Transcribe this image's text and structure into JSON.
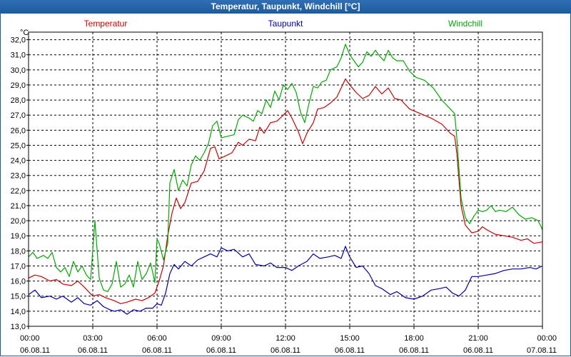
{
  "window": {
    "title": "Temperatur, Taupunkt, Windchill [°C]"
  },
  "colors": {
    "temperatur": "#cc0000",
    "taupunkt": "#0000aa",
    "windchill": "#00aa00",
    "grid": "#000000"
  },
  "chart_data": {
    "type": "line",
    "title": "Temperatur, Taupunkt, Windchill [°C]",
    "yunit": "°C",
    "ylim": [
      13.0,
      32.5
    ],
    "yticks": [
      "13,0",
      "14,0",
      "15,0",
      "16,0",
      "17,0",
      "18,0",
      "19,0",
      "20,0",
      "21,0",
      "22,0",
      "23,0",
      "24,0",
      "25,0",
      "26,0",
      "27,0",
      "28,0",
      "29,0",
      "30,0",
      "31,0",
      "32,0"
    ],
    "xlim": [
      0,
      24
    ],
    "xticks": [
      {
        "time": "00:00",
        "date": "06.08.11"
      },
      {
        "time": "03:00",
        "date": "06.08.11"
      },
      {
        "time": "06:00",
        "date": "06.08.11"
      },
      {
        "time": "09:00",
        "date": "06.08.11"
      },
      {
        "time": "12:00",
        "date": "06.08.11"
      },
      {
        "time": "15:00",
        "date": "06.08.11"
      },
      {
        "time": "18:00",
        "date": "06.08.11"
      },
      {
        "time": "21:00",
        "date": "06.08.11"
      },
      {
        "time": "00:00",
        "date": "07.08.11"
      }
    ],
    "series": [
      {
        "name": "Temperatur",
        "color": "#cc0000",
        "points": [
          [
            0,
            16.2
          ],
          [
            0.3,
            16.4
          ],
          [
            0.6,
            16.3
          ],
          [
            1.0,
            16.0
          ],
          [
            1.3,
            16.1
          ],
          [
            1.6,
            15.8
          ],
          [
            2.0,
            15.7
          ],
          [
            2.3,
            16.0
          ],
          [
            2.6,
            15.6
          ],
          [
            3.0,
            15.0
          ],
          [
            3.3,
            15.1
          ],
          [
            3.6,
            14.9
          ],
          [
            4.0,
            14.7
          ],
          [
            4.3,
            14.5
          ],
          [
            4.6,
            14.6
          ],
          [
            5.0,
            14.8
          ],
          [
            5.3,
            14.7
          ],
          [
            5.6,
            14.9
          ],
          [
            5.9,
            15.2
          ],
          [
            6.1,
            16.0
          ],
          [
            6.3,
            17.0
          ],
          [
            6.5,
            19.0
          ],
          [
            6.7,
            20.5
          ],
          [
            6.9,
            21.5
          ],
          [
            7.1,
            20.8
          ],
          [
            7.3,
            21.2
          ],
          [
            7.6,
            22.5
          ],
          [
            7.9,
            22.6
          ],
          [
            8.2,
            23.3
          ],
          [
            8.5,
            24.8
          ],
          [
            8.7,
            24.9
          ],
          [
            8.9,
            24.1
          ],
          [
            9.2,
            24.3
          ],
          [
            9.5,
            24.5
          ],
          [
            9.8,
            25.2
          ],
          [
            10.0,
            25.0
          ],
          [
            10.3,
            25.4
          ],
          [
            10.6,
            25.3
          ],
          [
            10.8,
            26.2
          ],
          [
            11.0,
            25.8
          ],
          [
            11.3,
            26.5
          ],
          [
            11.6,
            26.6
          ],
          [
            11.9,
            27.0
          ],
          [
            12.1,
            27.3
          ],
          [
            12.3,
            26.8
          ],
          [
            12.6,
            25.9
          ],
          [
            12.8,
            25.1
          ],
          [
            13.0,
            25.8
          ],
          [
            13.3,
            26.5
          ],
          [
            13.5,
            27.4
          ],
          [
            13.8,
            27.5
          ],
          [
            14.1,
            27.8
          ],
          [
            14.4,
            28.2
          ],
          [
            14.8,
            29.4
          ],
          [
            15.0,
            29.0
          ],
          [
            15.3,
            28.5
          ],
          [
            15.6,
            28.1
          ],
          [
            15.9,
            28.3
          ],
          [
            16.2,
            28.9
          ],
          [
            16.5,
            28.4
          ],
          [
            16.8,
            28.8
          ],
          [
            17.1,
            28.1
          ],
          [
            17.4,
            28.0
          ],
          [
            17.8,
            27.4
          ],
          [
            18.3,
            27.1
          ],
          [
            18.8,
            26.8
          ],
          [
            19.3,
            26.4
          ],
          [
            19.7,
            25.8
          ],
          [
            19.9,
            25.6
          ],
          [
            20.0,
            24.5
          ],
          [
            20.2,
            21.0
          ],
          [
            20.4,
            19.7
          ],
          [
            20.7,
            19.2
          ],
          [
            21.0,
            19.3
          ],
          [
            21.2,
            19.6
          ],
          [
            21.4,
            19.4
          ],
          [
            21.8,
            19.1
          ],
          [
            22.2,
            19.0
          ],
          [
            22.6,
            18.9
          ],
          [
            23.0,
            18.7
          ],
          [
            23.3,
            18.8
          ],
          [
            23.6,
            18.5
          ],
          [
            24.0,
            18.6
          ]
        ]
      },
      {
        "name": "Taupunkt",
        "color": "#0000aa",
        "points": [
          [
            0,
            15.1
          ],
          [
            0.3,
            15.4
          ],
          [
            0.6,
            14.9
          ],
          [
            1.0,
            15.0
          ],
          [
            1.3,
            14.8
          ],
          [
            1.6,
            15.0
          ],
          [
            2.0,
            14.6
          ],
          [
            2.3,
            14.9
          ],
          [
            2.6,
            14.5
          ],
          [
            2.9,
            14.4
          ],
          [
            3.2,
            14.7
          ],
          [
            3.5,
            14.3
          ],
          [
            3.8,
            14.1
          ],
          [
            4.0,
            14.0
          ],
          [
            4.3,
            14.1
          ],
          [
            4.6,
            13.8
          ],
          [
            4.9,
            14.1
          ],
          [
            5.2,
            14.0
          ],
          [
            5.5,
            14.2
          ],
          [
            5.8,
            14.2
          ],
          [
            6.0,
            14.5
          ],
          [
            6.2,
            14.4
          ],
          [
            6.4,
            15.2
          ],
          [
            6.6,
            16.5
          ],
          [
            6.8,
            17.1
          ],
          [
            7.0,
            16.8
          ],
          [
            7.3,
            17.3
          ],
          [
            7.6,
            17.0
          ],
          [
            7.9,
            17.4
          ],
          [
            8.2,
            17.6
          ],
          [
            8.5,
            17.8
          ],
          [
            8.8,
            17.6
          ],
          [
            9.0,
            18.2
          ],
          [
            9.3,
            18.0
          ],
          [
            9.6,
            18.1
          ],
          [
            10.0,
            17.6
          ],
          [
            10.3,
            17.8
          ],
          [
            10.6,
            17.1
          ],
          [
            11.0,
            17.0
          ],
          [
            11.3,
            17.2
          ],
          [
            11.6,
            16.9
          ],
          [
            12.0,
            16.9
          ],
          [
            12.3,
            16.7
          ],
          [
            12.6,
            17.0
          ],
          [
            13.0,
            17.3
          ],
          [
            13.3,
            17.8
          ],
          [
            13.6,
            17.5
          ],
          [
            14.0,
            17.6
          ],
          [
            14.3,
            17.7
          ],
          [
            14.6,
            17.5
          ],
          [
            14.8,
            18.3
          ],
          [
            15.0,
            17.6
          ],
          [
            15.3,
            16.9
          ],
          [
            15.6,
            17.0
          ],
          [
            15.9,
            16.5
          ],
          [
            16.2,
            15.7
          ],
          [
            16.5,
            15.5
          ],
          [
            16.9,
            15.1
          ],
          [
            17.2,
            15.3
          ],
          [
            17.6,
            14.9
          ],
          [
            18.0,
            14.8
          ],
          [
            18.4,
            15.0
          ],
          [
            18.8,
            15.4
          ],
          [
            19.2,
            15.5
          ],
          [
            19.5,
            15.6
          ],
          [
            19.8,
            15.2
          ],
          [
            20.1,
            15.0
          ],
          [
            20.4,
            15.4
          ],
          [
            20.7,
            16.3
          ],
          [
            21.0,
            16.3
          ],
          [
            21.4,
            16.4
          ],
          [
            21.8,
            16.5
          ],
          [
            22.2,
            16.7
          ],
          [
            22.6,
            16.8
          ],
          [
            23.0,
            16.8
          ],
          [
            23.4,
            16.9
          ],
          [
            23.7,
            16.8
          ],
          [
            24.0,
            17.0
          ]
        ]
      },
      {
        "name": "Windchill",
        "color": "#00aa00",
        "points": [
          [
            0,
            17.6
          ],
          [
            0.2,
            17.9
          ],
          [
            0.4,
            17.5
          ],
          [
            0.7,
            17.7
          ],
          [
            0.9,
            17.5
          ],
          [
            1.1,
            17.9
          ],
          [
            1.3,
            16.9
          ],
          [
            1.5,
            16.6
          ],
          [
            1.7,
            16.9
          ],
          [
            1.9,
            16.3
          ],
          [
            2.1,
            17.3
          ],
          [
            2.3,
            16.6
          ],
          [
            2.5,
            17.0
          ],
          [
            2.7,
            16.4
          ],
          [
            2.9,
            16.1
          ],
          [
            3.1,
            20.0
          ],
          [
            3.3,
            16.2
          ],
          [
            3.5,
            15.4
          ],
          [
            3.7,
            15.3
          ],
          [
            3.9,
            15.8
          ],
          [
            4.1,
            17.3
          ],
          [
            4.3,
            15.6
          ],
          [
            4.5,
            15.8
          ],
          [
            4.7,
            16.4
          ],
          [
            4.9,
            15.6
          ],
          [
            5.1,
            17.3
          ],
          [
            5.3,
            16.1
          ],
          [
            5.5,
            16.5
          ],
          [
            5.7,
            17.2
          ],
          [
            5.9,
            15.9
          ],
          [
            6.0,
            18.8
          ],
          [
            6.1,
            18.5
          ],
          [
            6.3,
            17.4
          ],
          [
            6.5,
            18.5
          ],
          [
            6.6,
            22.5
          ],
          [
            6.8,
            23.4
          ],
          [
            7.0,
            22.0
          ],
          [
            7.2,
            22.7
          ],
          [
            7.4,
            22.3
          ],
          [
            7.6,
            23.7
          ],
          [
            7.8,
            24.3
          ],
          [
            8.0,
            24.0
          ],
          [
            8.2,
            24.5
          ],
          [
            8.4,
            25.1
          ],
          [
            8.6,
            26.3
          ],
          [
            8.8,
            26.6
          ],
          [
            9.0,
            25.5
          ],
          [
            9.3,
            25.6
          ],
          [
            9.6,
            25.7
          ],
          [
            9.8,
            26.7
          ],
          [
            10.0,
            27.0
          ],
          [
            10.3,
            26.8
          ],
          [
            10.5,
            26.6
          ],
          [
            10.7,
            27.3
          ],
          [
            10.9,
            27.1
          ],
          [
            11.1,
            28.0
          ],
          [
            11.3,
            27.5
          ],
          [
            11.5,
            28.6
          ],
          [
            11.7,
            28.0
          ],
          [
            11.9,
            29.0
          ],
          [
            12.1,
            28.7
          ],
          [
            12.3,
            29.1
          ],
          [
            12.5,
            28.5
          ],
          [
            12.7,
            27.2
          ],
          [
            12.9,
            26.5
          ],
          [
            13.1,
            27.8
          ],
          [
            13.3,
            28.9
          ],
          [
            13.5,
            28.8
          ],
          [
            13.7,
            29.2
          ],
          [
            13.9,
            29.3
          ],
          [
            14.1,
            30.0
          ],
          [
            14.4,
            30.2
          ],
          [
            14.6,
            30.8
          ],
          [
            14.8,
            31.7
          ],
          [
            15.0,
            31.0
          ],
          [
            15.2,
            30.6
          ],
          [
            15.4,
            30.2
          ],
          [
            15.6,
            30.5
          ],
          [
            15.8,
            31.2
          ],
          [
            16.0,
            30.9
          ],
          [
            16.2,
            31.3
          ],
          [
            16.4,
            30.9
          ],
          [
            16.6,
            30.6
          ],
          [
            16.8,
            31.3
          ],
          [
            17.0,
            30.8
          ],
          [
            17.2,
            30.6
          ],
          [
            17.5,
            30.6
          ],
          [
            17.8,
            29.9
          ],
          [
            18.1,
            29.5
          ],
          [
            18.5,
            29.3
          ],
          [
            18.9,
            28.8
          ],
          [
            19.3,
            28.0
          ],
          [
            19.7,
            27.4
          ],
          [
            19.9,
            27.1
          ],
          [
            20.0,
            25.5
          ],
          [
            20.2,
            21.5
          ],
          [
            20.4,
            20.2
          ],
          [
            20.6,
            19.8
          ],
          [
            20.8,
            20.3
          ],
          [
            21.0,
            20.7
          ],
          [
            21.2,
            20.6
          ],
          [
            21.4,
            20.7
          ],
          [
            21.6,
            21.0
          ],
          [
            21.8,
            20.6
          ],
          [
            22.0,
            20.7
          ],
          [
            22.3,
            20.6
          ],
          [
            22.6,
            20.9
          ],
          [
            22.9,
            20.4
          ],
          [
            23.2,
            20.1
          ],
          [
            23.5,
            20.2
          ],
          [
            23.8,
            20.0
          ],
          [
            24.0,
            19.4
          ]
        ]
      }
    ]
  }
}
